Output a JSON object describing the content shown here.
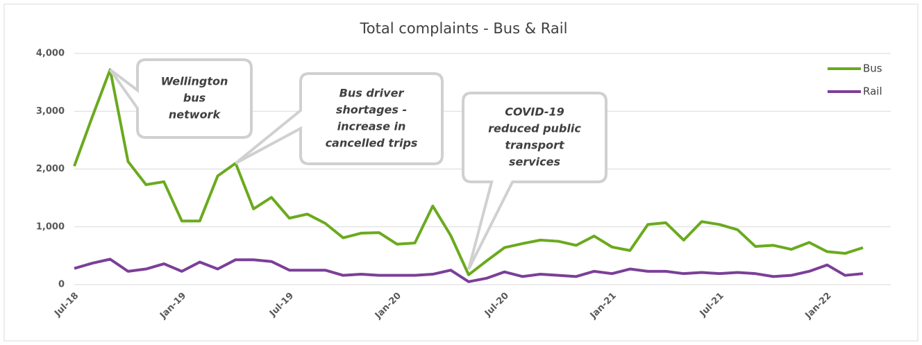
{
  "chart_data": {
    "type": "line",
    "title": "Total complaints - Bus & Rail",
    "categories": [
      "Jul-18",
      null,
      null,
      null,
      null,
      null,
      "Jan-19",
      null,
      null,
      null,
      null,
      null,
      "Jul-19",
      null,
      null,
      null,
      null,
      null,
      "Jan-20",
      null,
      null,
      null,
      null,
      null,
      "Jul-20",
      null,
      null,
      null,
      null,
      null,
      "Jan-21",
      null,
      null,
      null,
      null,
      null,
      "Jul-21",
      null,
      null,
      null,
      null,
      null,
      "Jan-22",
      null,
      null
    ],
    "series": [
      {
        "name": "Bus",
        "color": "#6aaa1e",
        "values": [
          2050,
          2900,
          3720,
          2130,
          1730,
          1780,
          1100,
          1100,
          1880,
          2100,
          1310,
          1510,
          1150,
          1220,
          1060,
          810,
          890,
          900,
          700,
          720,
          1360,
          850,
          170,
          410,
          640,
          710,
          770,
          750,
          680,
          840,
          650,
          590,
          1040,
          1070,
          770,
          1090,
          1040,
          950,
          660,
          680,
          610,
          730,
          570,
          540,
          640
        ]
      },
      {
        "name": "Rail",
        "color": "#7b3f98",
        "values": [
          280,
          370,
          440,
          230,
          270,
          360,
          230,
          390,
          270,
          430,
          430,
          400,
          250,
          250,
          250,
          160,
          180,
          160,
          160,
          160,
          180,
          250,
          50,
          110,
          220,
          140,
          180,
          160,
          140,
          230,
          190,
          270,
          230,
          230,
          190,
          210,
          190,
          210,
          190,
          140,
          160,
          230,
          340,
          160,
          190
        ]
      }
    ],
    "ylim": [
      0,
      4000
    ],
    "yticks": [
      0,
      {
        "value": 1000,
        "label": "1,000"
      },
      {
        "value": 2000,
        "label": "2,000"
      },
      {
        "value": 3000,
        "label": "3,000"
      },
      {
        "value": 4000,
        "label": "4,000"
      }
    ],
    "grid": true,
    "legend": "top-right",
    "annotations": [
      {
        "lines": [
          "Wellington",
          "bus",
          "network"
        ],
        "index": 2
      },
      {
        "lines": [
          "Bus driver",
          "shortages -",
          "increase in",
          "cancelled trips"
        ],
        "index": 9
      },
      {
        "lines": [
          "COVID-19",
          "reduced public",
          "transport",
          "services"
        ],
        "index": 22
      }
    ]
  }
}
